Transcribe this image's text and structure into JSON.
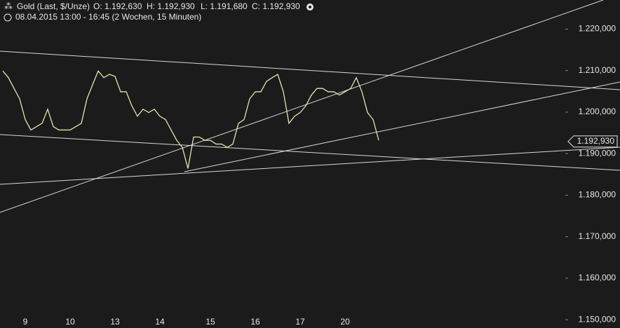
{
  "chart_data": {
    "type": "line",
    "title": "Gold (Last, $/Unze)",
    "ohlc": [
      "O: 1.192,630",
      "H: 1.192,930",
      "L: 1.191,680",
      "C: 1.192,930"
    ],
    "subtitle": "08.04.2015 13:00 - 16:45 (2 Wochen, 15 Minuten)",
    "last_price_label": "1.192,930",
    "last_price": 1.19293,
    "color": "#e6e2b0",
    "categories": [
      null,
      null,
      null,
      null,
      "9",
      null,
      null,
      null,
      null,
      null,
      null,
      null,
      "10",
      null,
      null,
      null,
      null,
      null,
      null,
      null,
      "13",
      null,
      null,
      null,
      null,
      null,
      null,
      null,
      "14",
      null,
      null,
      null,
      null,
      null,
      null,
      null,
      null,
      "15",
      null,
      null,
      null,
      null,
      null,
      null,
      null,
      "16",
      null,
      null,
      null,
      null,
      null,
      null,
      null,
      "17",
      null,
      null,
      null,
      null,
      null,
      null,
      null,
      "20",
      null,
      null,
      null,
      null,
      null,
      null
    ],
    "values": [
      1.2099,
      1.2083,
      1.2057,
      1.2032,
      1.1982,
      1.1957,
      1.1965,
      1.1973,
      1.2007,
      1.1965,
      1.1957,
      1.1957,
      1.1957,
      1.1965,
      1.1973,
      1.2032,
      1.2066,
      1.2099,
      1.2083,
      1.2091,
      1.2086,
      1.2049,
      1.2049,
      1.2015,
      1.199,
      1.2007,
      1.1999,
      1.2007,
      1.199,
      1.1982,
      1.1957,
      1.1932,
      1.1915,
      1.1864,
      1.194,
      1.194,
      1.1932,
      1.1932,
      1.1923,
      1.1923,
      1.1915,
      1.1923,
      1.1973,
      1.1982,
      1.2032,
      1.2049,
      1.2049,
      1.2074,
      1.2083,
      1.2091,
      1.2049,
      1.1973,
      1.199,
      1.1999,
      1.2015,
      1.2041,
      1.2057,
      1.2057,
      1.2049,
      1.2049,
      1.2041,
      1.2049,
      1.2057,
      1.2083,
      1.2049,
      1.1999,
      1.1982,
      1.1932
    ],
    "ylim": [
      1.148,
      1.227
    ],
    "yticks": [
      {
        "value": 1.15,
        "label": "1.150,000"
      },
      {
        "value": 1.16,
        "label": "1.160,000"
      },
      {
        "value": 1.17,
        "label": "1.170,000"
      },
      {
        "value": 1.18,
        "label": "1.180,000"
      },
      {
        "value": 1.19,
        "label": "1.190,000"
      },
      {
        "value": 1.2,
        "label": "1.200,000"
      },
      {
        "value": 1.21,
        "label": "1.210,000"
      },
      {
        "value": 1.22,
        "label": "1.220,000"
      }
    ],
    "grid": false
  }
}
